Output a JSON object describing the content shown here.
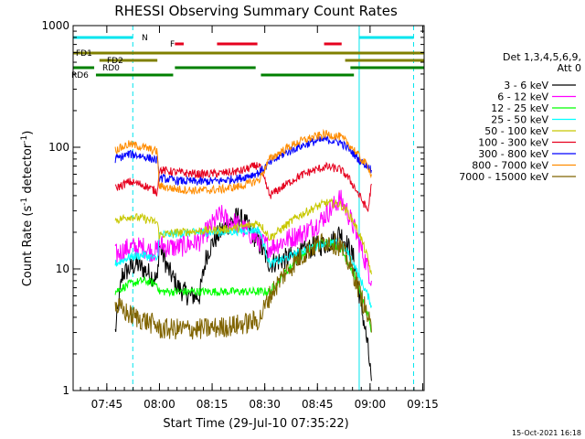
{
  "chart_data": {
    "type": "line",
    "title": "RHESSI Observing Summary Count Rates",
    "xlabel": "Start Time (29-Jul-10 07:35:22)",
    "ylabel_main": "Count Rate (s",
    "ylabel_sup": "-1",
    "ylabel_tail": " detector",
    "ylabel_end": ")",
    "y_scale": "log",
    "ylim": [
      1,
      1000
    ],
    "xlim_minutes": [
      0,
      100
    ],
    "x_ticks": [
      {
        "label": "07:45",
        "minute": 9.6
      },
      {
        "label": "08:00",
        "minute": 24.6
      },
      {
        "label": "08:15",
        "minute": 39.6
      },
      {
        "label": "08:30",
        "minute": 54.6
      },
      {
        "label": "08:45",
        "minute": 69.6
      },
      {
        "label": "09:00",
        "minute": 84.6
      },
      {
        "label": "09:15",
        "minute": 99.6
      }
    ],
    "y_ticks": [
      {
        "label": "1",
        "value": 1
      },
      {
        "label": "10",
        "value": 10
      },
      {
        "label": "100",
        "value": 100
      },
      {
        "label": "1000",
        "value": 1000
      }
    ],
    "legend_title_1": "Det 1,3,4,5,6,9,",
    "legend_title_2": "Att 0",
    "legend_position": "right",
    "timestamp": "15-Oct-2021 16:18",
    "night_boundaries_minutes": [
      0,
      17,
      81.5,
      97
    ],
    "flags": [
      {
        "label": "N",
        "color": "#00e5ee",
        "segments": [
          [
            0,
            17
          ],
          [
            81.5,
            97
          ]
        ]
      },
      {
        "label": "F",
        "color": "#e6001e",
        "segments": [
          [
            29,
            31.5
          ],
          [
            41,
            52.5
          ],
          [
            71.5,
            76.5
          ]
        ]
      },
      {
        "label": "FD1",
        "color": "#808000",
        "segments": [
          [
            0,
            100
          ]
        ]
      },
      {
        "label": "FD2",
        "color": "#808000",
        "segments": [
          [
            7.5,
            24
          ],
          [
            77.5,
            100
          ]
        ]
      },
      {
        "label": "RD0",
        "color": "#008000",
        "segments": [
          [
            0,
            6
          ],
          [
            29,
            52
          ],
          [
            79,
            100
          ]
        ]
      },
      {
        "label": "RD6",
        "color": "#008000",
        "segments": [
          [
            6.5,
            28.5
          ],
          [
            53.5,
            80
          ]
        ]
      }
    ],
    "series": [
      {
        "name": "3 - 6 keV",
        "color": "#000000",
        "x": [
          12,
          14,
          16,
          18,
          20,
          22,
          24,
          24.5,
          27,
          30,
          33,
          36,
          38,
          40,
          42,
          44,
          47,
          50,
          53,
          56,
          60,
          64,
          68,
          72,
          74,
          76,
          78,
          80,
          81,
          82,
          83,
          84,
          85
        ],
        "values": [
          3,
          9,
          10,
          11,
          10,
          9,
          8,
          16,
          10,
          7,
          6,
          6,
          13,
          17,
          20,
          23,
          27,
          22,
          16,
          11,
          12,
          13,
          15,
          16,
          17,
          20,
          16,
          12,
          8,
          5,
          3.5,
          2.2,
          1.2
        ]
      },
      {
        "name": "6 - 12 keV",
        "color": "#ff00ff",
        "x": [
          12,
          14,
          16,
          18,
          20,
          22,
          24,
          24.5,
          27,
          30,
          33,
          36,
          38,
          40,
          42,
          44,
          46,
          50,
          53,
          56,
          58,
          62,
          66,
          70,
          72,
          74,
          76,
          78,
          80,
          82,
          84,
          85
        ],
        "values": [
          13,
          14,
          15,
          15,
          15,
          14,
          14,
          16,
          15,
          15,
          16,
          17,
          20,
          24,
          28,
          25,
          24,
          20,
          17,
          15,
          16,
          18,
          20,
          24,
          28,
          32,
          38,
          30,
          22,
          15,
          10,
          8
        ]
      },
      {
        "name": "12 - 25 keV",
        "color": "#00ff00",
        "x": [
          12,
          16,
          20,
          24,
          24.5,
          30,
          36,
          42,
          48,
          53,
          56,
          60,
          64,
          68,
          72,
          76,
          78,
          80,
          82,
          84,
          85
        ],
        "values": [
          6.5,
          7.5,
          8,
          7.5,
          6.5,
          6.5,
          6.5,
          6.5,
          6.5,
          6.5,
          6.5,
          9,
          12,
          15,
          17,
          15,
          12,
          9,
          6,
          4,
          3
        ]
      },
      {
        "name": "25 - 50 keV",
        "color": "#00ffff",
        "x": [
          12,
          16,
          20,
          24,
          24.5,
          30,
          36,
          42,
          48,
          53,
          56,
          60,
          64,
          68,
          72,
          76,
          78,
          80,
          82,
          84,
          85
        ],
        "values": [
          11,
          12.5,
          13,
          12,
          19,
          19.5,
          20,
          20,
          20.5,
          21,
          11,
          12,
          13.5,
          15,
          16.5,
          16,
          14,
          11,
          8,
          6,
          5
        ]
      },
      {
        "name": "50 - 100 keV",
        "color": "#c8c800",
        "x": [
          12,
          16,
          20,
          24,
          24.5,
          30,
          36,
          42,
          48,
          53,
          56,
          60,
          64,
          68,
          72,
          76,
          78,
          80,
          82,
          84,
          85
        ],
        "values": [
          25,
          27,
          26,
          24,
          19,
          20,
          20.5,
          21,
          22,
          24,
          18,
          22,
          27,
          31,
          35,
          34,
          30,
          24,
          18,
          12,
          9
        ]
      },
      {
        "name": "100 - 300 keV",
        "color": "#e6001e",
        "x": [
          12,
          16,
          20,
          24,
          24.5,
          30,
          36,
          42,
          48,
          53,
          56,
          60,
          64,
          68,
          72,
          76,
          78,
          80,
          82,
          84,
          85
        ],
        "values": [
          46,
          52,
          49,
          43,
          65,
          62,
          60,
          61,
          64,
          72,
          40,
          48,
          57,
          64,
          69,
          66,
          58,
          48,
          38,
          30,
          50
        ]
      },
      {
        "name": "300 - 800 keV",
        "color": "#0000ff",
        "x": [
          12,
          16,
          20,
          24,
          24.5,
          30,
          36,
          42,
          48,
          53,
          56,
          60,
          64,
          68,
          72,
          76,
          78,
          80,
          82,
          84,
          85
        ],
        "values": [
          80,
          88,
          84,
          78,
          56,
          53,
          52,
          53,
          56,
          62,
          74,
          88,
          100,
          110,
          116,
          110,
          100,
          88,
          76,
          70,
          65
        ]
      },
      {
        "name": "800 - 7000 keV",
        "color": "#ff8c00",
        "x": [
          12,
          16,
          20,
          24,
          24.5,
          30,
          36,
          42,
          48,
          53,
          56,
          60,
          64,
          68,
          72,
          76,
          78,
          80,
          82,
          84,
          85
        ],
        "values": [
          95,
          106,
          100,
          92,
          48,
          45,
          44,
          45,
          48,
          54,
          80,
          95,
          110,
          120,
          128,
          122,
          110,
          96,
          80,
          70,
          60
        ]
      },
      {
        "name": "7000 - 15000 keV",
        "color": "#806400",
        "x": [
          12,
          16,
          20,
          24,
          24.5,
          30,
          36,
          42,
          48,
          53,
          56,
          60,
          64,
          68,
          72,
          76,
          78,
          80,
          82,
          84,
          85
        ],
        "values": [
          5,
          4.2,
          3.8,
          3.4,
          3.2,
          3.2,
          3.2,
          3.3,
          3.5,
          3.8,
          6,
          9,
          12,
          15,
          17,
          15.5,
          12,
          9,
          6,
          4,
          3
        ]
      }
    ]
  }
}
